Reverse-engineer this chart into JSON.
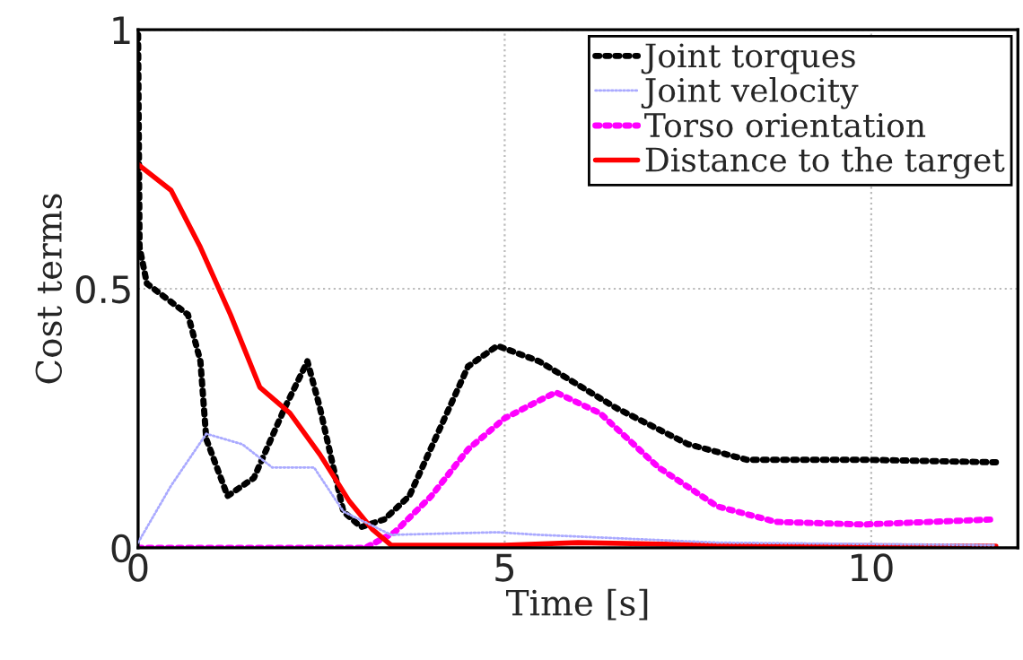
{
  "chart_data": {
    "type": "line",
    "xlabel": "Time [s]",
    "ylabel": "Cost terms",
    "xlim": [
      0,
      12
    ],
    "ylim": [
      0,
      1
    ],
    "xticks": [
      0,
      5,
      10
    ],
    "yticks": [
      0,
      0.5,
      1
    ],
    "grid": true,
    "legend": "top right",
    "series": [
      {
        "name": "Joint torques",
        "color": "#000000",
        "line_style": "dotted",
        "x": [
          0,
          0.02,
          0.12,
          0.68,
          0.85,
          0.93,
          1.22,
          1.58,
          2.0,
          2.31,
          2.48,
          2.8,
          3.04,
          3.36,
          3.7,
          4.18,
          4.5,
          4.9,
          5.47,
          6.52,
          7.5,
          8.3,
          9.9,
          11.7
        ],
        "values": [
          0.99,
          0.58,
          0.51,
          0.45,
          0.36,
          0.21,
          0.1,
          0.135,
          0.27,
          0.36,
          0.27,
          0.07,
          0.04,
          0.055,
          0.1,
          0.25,
          0.35,
          0.39,
          0.36,
          0.27,
          0.2,
          0.17,
          0.17,
          0.165
        ]
      },
      {
        "name": "Joint velocity",
        "color": "#aaaaff",
        "line_style": "dotted",
        "x": [
          0,
          0.45,
          0.93,
          1.42,
          1.83,
          2.4,
          2.8,
          3.45,
          4.9,
          5.47,
          7.9,
          11.7
        ],
        "values": [
          0.01,
          0.12,
          0.22,
          0.2,
          0.155,
          0.155,
          0.07,
          0.025,
          0.03,
          0.025,
          0.01,
          0.005
        ]
      },
      {
        "name": "Torso orientation",
        "color": "#ff00ff",
        "line_style": "dotted",
        "x": [
          0,
          3.1,
          3.5,
          4.0,
          4.5,
          5.0,
          5.55,
          5.7,
          6.3,
          7.1,
          7.9,
          8.7,
          9.9,
          11.7
        ],
        "values": [
          0,
          0,
          0.03,
          0.1,
          0.19,
          0.25,
          0.29,
          0.3,
          0.26,
          0.155,
          0.08,
          0.05,
          0.045,
          0.055
        ]
      },
      {
        "name": "Distance to the target",
        "color": "#ff0000",
        "line_style": "solid",
        "x": [
          0,
          0.45,
          0.85,
          1.26,
          1.66,
          2.07,
          2.48,
          2.88,
          3.2,
          3.45,
          5.0,
          6.0,
          8.0,
          11.7
        ],
        "values": [
          0.74,
          0.69,
          0.58,
          0.45,
          0.31,
          0.26,
          0.18,
          0.09,
          0.035,
          0.005,
          0.005,
          0.01,
          0.005,
          0.003
        ]
      }
    ]
  }
}
